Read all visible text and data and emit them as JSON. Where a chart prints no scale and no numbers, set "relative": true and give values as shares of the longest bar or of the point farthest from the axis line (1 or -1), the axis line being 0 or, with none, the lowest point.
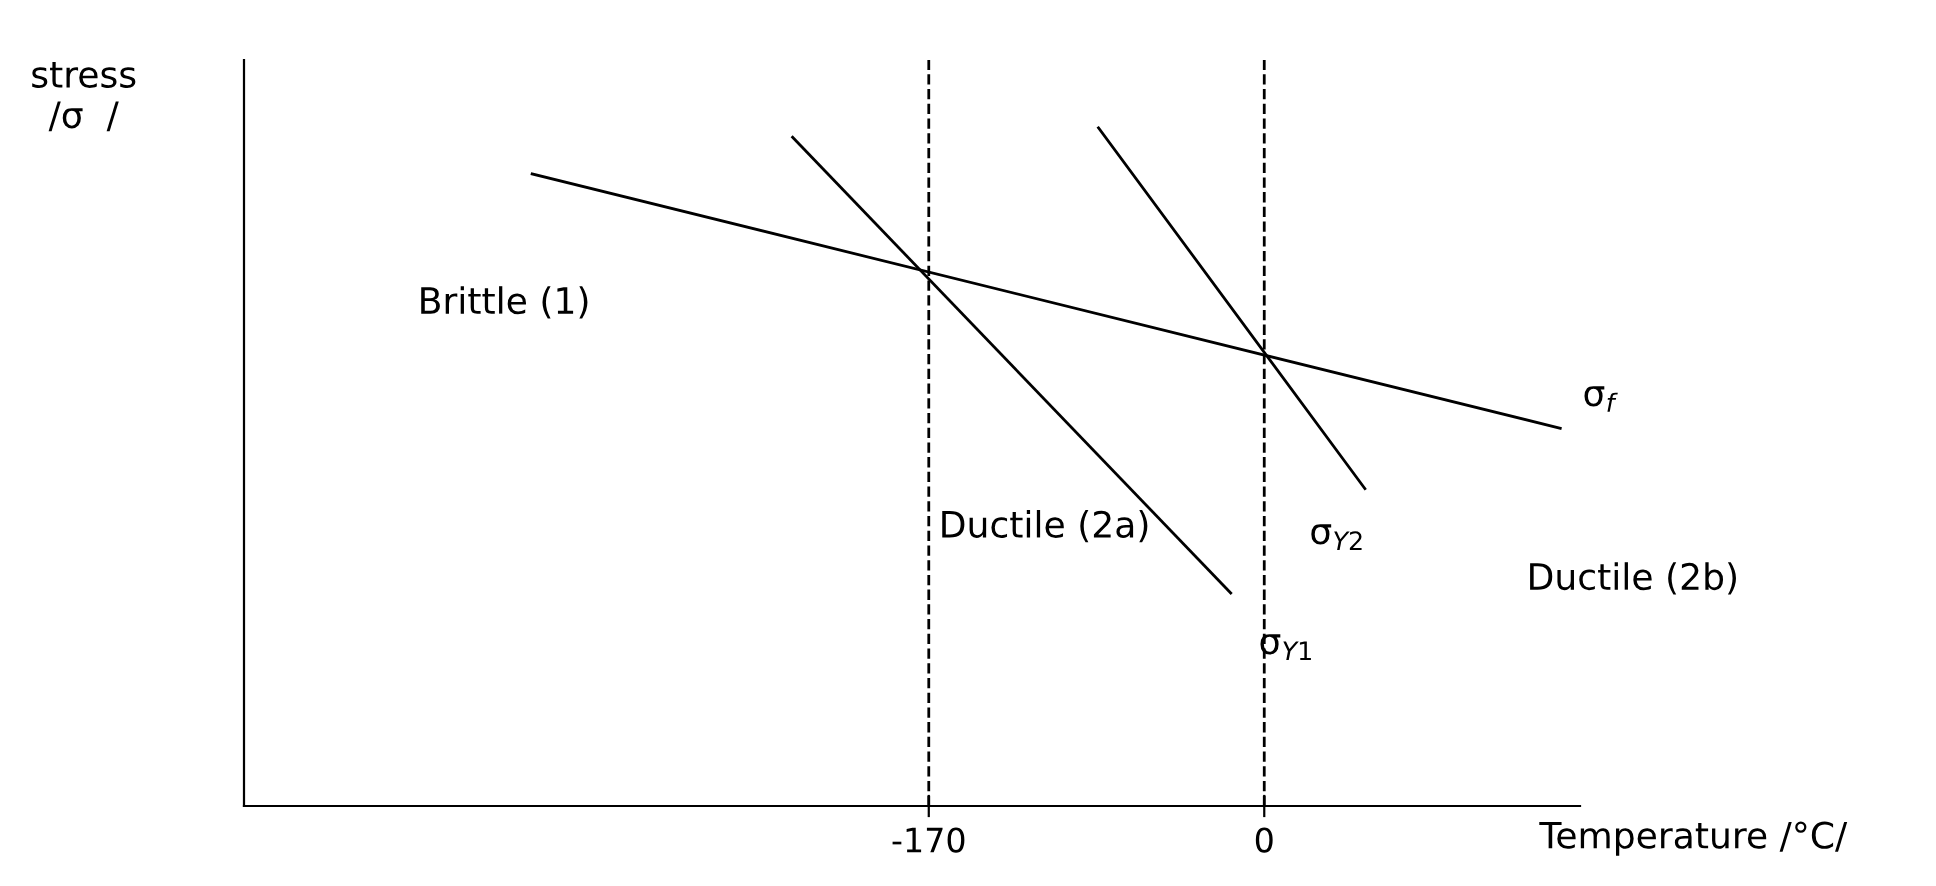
{
  "chart_data": {
    "type": "line",
    "relative": true,
    "xlabel": "Temperature /°C/",
    "ylabel": "stress\n/σ  /",
    "xlim": [
      -517,
      160
    ],
    "xticks": [
      -170,
      0
    ],
    "grid": false,
    "legend": false,
    "marker": "none",
    "line_style": "solid",
    "series": [
      {
        "name": "σ$_{f}$",
        "color": "#000000",
        "x": [
          -371,
          150
        ],
        "values": [
          0.932,
          0.557
        ]
      },
      {
        "name": "σ$_{Y1}$",
        "color": "#000000",
        "x": [
          -239,
          -17
        ],
        "values": [
          0.986,
          0.314
        ]
      },
      {
        "name": "σ$_{Y2}$",
        "color": "#000000",
        "x": [
          -84,
          51
        ],
        "values": [
          1.0,
          0.468
        ]
      }
    ],
    "ref_lines": [
      {
        "axis": "x",
        "value": -170,
        "line_style": "dashed",
        "color": "#000000"
      },
      {
        "axis": "x",
        "value": 0,
        "line_style": "dashed",
        "color": "#000000"
      }
    ],
    "annotations": [
      "Brittle (1)",
      "Ductile (2a)",
      "Ductile (2b)"
    ]
  }
}
